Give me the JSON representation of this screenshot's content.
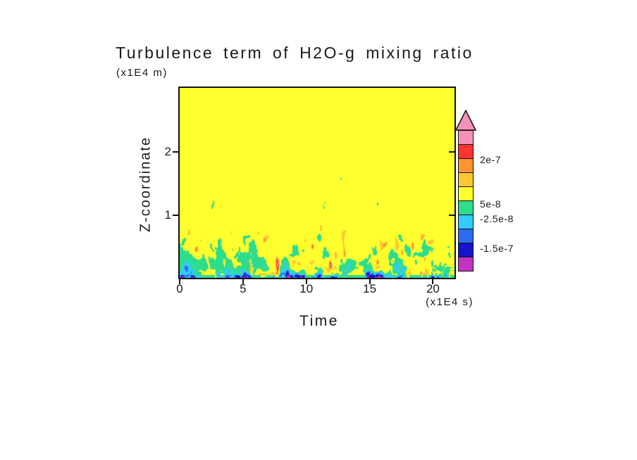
{
  "chart_data": {
    "type": "heatmap",
    "title": "Turbulence term of H2O-g mixing ratio",
    "xlabel": "Time",
    "ylabel": "Z-coordinate",
    "x_unit_label": "(x1E4 s)",
    "y_unit_label": "(x1E4 m)",
    "x_range": [
      0,
      21.7
    ],
    "y_range": [
      0,
      3.02
    ],
    "x_ticks": [
      0,
      5,
      10,
      15,
      20
    ],
    "y_ticks": [
      1,
      2
    ],
    "grid": false,
    "legend_position": "right-colorbar",
    "colorbar": {
      "orientation": "vertical",
      "over_arrow": true,
      "segment_colors_bottom_to_top": [
        "#C233C2",
        "#1414C8",
        "#2E6BF0",
        "#33CCFF",
        "#2EDD8C",
        "#FFFF2E",
        "#FFC733",
        "#FF9433",
        "#FF3333",
        "#F591B7"
      ],
      "level_boundaries_bottom_to_top": [
        -2.5e-07,
        -1.5e-07,
        -1e-07,
        -2.5e-08,
        5e-08,
        1e-07,
        1.5e-07,
        2e-07,
        2.5e-07
      ],
      "labeled_levels": [
        {
          "text": "2e-7",
          "boundary_index": 7
        },
        {
          "text": "5e-8",
          "boundary_index": 4
        },
        {
          "text": "-2.5e-8",
          "boundary_index": 3
        },
        {
          "text": "-1.5e-7",
          "boundary_index": 1
        }
      ]
    },
    "field": {
      "description": "Uniform near 7e-8 (yellow) aloft; turbulent layer below z of about 1.2 with near-zero green patches, sparse gold/orange positive streaks, and strong negative cyan/blue/navy spots near the surface, strongest at lower-left.",
      "background_value": 7.2e-08,
      "layer_top_mean": 1.02,
      "layer_top_amp": 0.45,
      "neg_amp": 4.5e-07,
      "pos_amp": 1.7e-07,
      "shear_exponent": 1.6,
      "streak_threshold": 0.82,
      "streak_amp": 1.9e-07,
      "ground_height": 0.24,
      "ground_amp": 9e-07,
      "left_edge_neg_amp": 3e-07,
      "surface_band_height": 0.05,
      "surface_band_drop": 6.5e-08,
      "speck_height": 1.65,
      "speck_threshold": 0.85,
      "seed": 7
    }
  }
}
